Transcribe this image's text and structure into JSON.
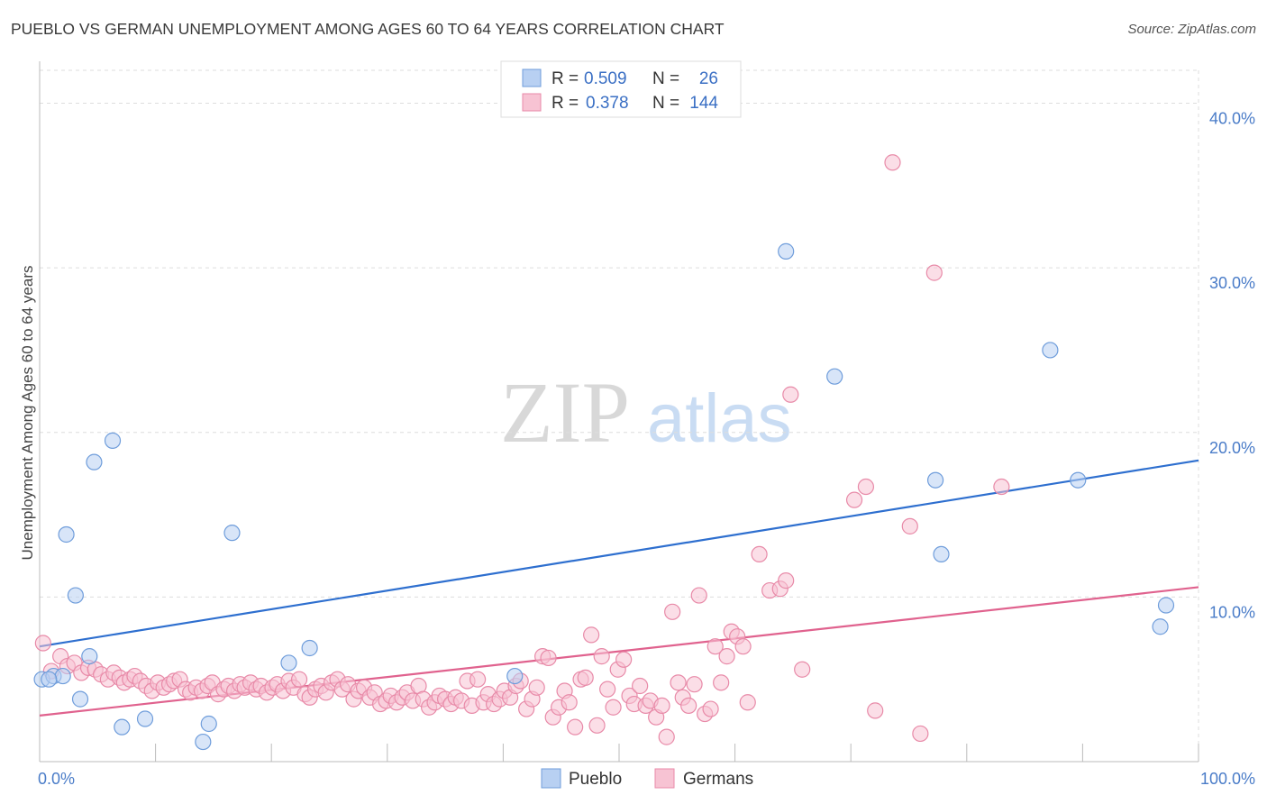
{
  "title": "PUEBLO VS GERMAN UNEMPLOYMENT AMONG AGES 60 TO 64 YEARS CORRELATION CHART",
  "source": "Source: ZipAtlas.com",
  "watermark": {
    "zip": "ZIP",
    "atlas": "atlas"
  },
  "colors": {
    "pueblo_fill": "#b8d0f2",
    "pueblo_stroke": "#6f9ddb",
    "pueblo_line": "#2e6fcf",
    "german_fill": "#f7c3d3",
    "german_stroke": "#e88aa8",
    "german_line": "#e0628e",
    "tick_text": "#4a7cc8",
    "grid": "#dddddd"
  },
  "legend": {
    "rows": [
      {
        "r_label": "R =",
        "r_value": "0.509",
        "n_label": "N =",
        "n_value": "26"
      },
      {
        "r_label": "R =",
        "r_value": "0.378",
        "n_label": "N =",
        "n_value": "144"
      }
    ]
  },
  "bottom_legend": [
    "Pueblo",
    "Germans"
  ],
  "chart_data": {
    "type": "scatter",
    "xlabel": "",
    "ylabel": "Unemployment Among Ages 60 to 64 years",
    "xlim": [
      0,
      100
    ],
    "ylim": [
      0,
      42
    ],
    "x_tick_labels": [
      "0.0%",
      "100.0%"
    ],
    "y_ticks": [
      10,
      20,
      30,
      40
    ],
    "y_tick_labels": [
      "10.0%",
      "20.0%",
      "30.0%",
      "40.0%"
    ],
    "grid": true,
    "legend_position": "top-center",
    "series": [
      {
        "name": "Pueblo",
        "r": 0.509,
        "n": 26,
        "trend": {
          "x": [
            0,
            100
          ],
          "y": [
            7.0,
            18.3
          ]
        },
        "points": [
          [
            0.2,
            5.0
          ],
          [
            1.2,
            5.2
          ],
          [
            2.0,
            5.2
          ],
          [
            2.3,
            13.8
          ],
          [
            3.1,
            10.1
          ],
          [
            3.5,
            3.8
          ],
          [
            4.3,
            6.4
          ],
          [
            4.7,
            18.2
          ],
          [
            6.3,
            19.5
          ],
          [
            7.1,
            2.1
          ],
          [
            9.1,
            2.6
          ],
          [
            14.1,
            1.2
          ],
          [
            14.6,
            2.3
          ],
          [
            16.6,
            13.9
          ],
          [
            21.5,
            6.0
          ],
          [
            23.3,
            6.9
          ],
          [
            41.0,
            5.2
          ],
          [
            64.4,
            31.0
          ],
          [
            68.6,
            23.4
          ],
          [
            77.3,
            17.1
          ],
          [
            77.8,
            12.6
          ],
          [
            87.2,
            25.0
          ],
          [
            89.6,
            17.1
          ],
          [
            96.7,
            8.2
          ],
          [
            97.2,
            9.5
          ],
          [
            0.8,
            5.0
          ]
        ]
      },
      {
        "name": "Germans",
        "r": 0.378,
        "n": 144,
        "trend": {
          "x": [
            0,
            100
          ],
          "y": [
            2.8,
            10.6
          ]
        },
        "points": [
          [
            0.3,
            7.2
          ],
          [
            1.0,
            5.5
          ],
          [
            1.8,
            6.4
          ],
          [
            2.4,
            5.8
          ],
          [
            3.0,
            6.0
          ],
          [
            3.6,
            5.4
          ],
          [
            4.2,
            5.7
          ],
          [
            4.8,
            5.6
          ],
          [
            5.3,
            5.3
          ],
          [
            5.9,
            5.0
          ],
          [
            6.4,
            5.4
          ],
          [
            6.9,
            5.1
          ],
          [
            7.3,
            4.8
          ],
          [
            7.8,
            5.0
          ],
          [
            8.2,
            5.2
          ],
          [
            8.7,
            4.9
          ],
          [
            9.2,
            4.6
          ],
          [
            9.7,
            4.3
          ],
          [
            10.2,
            4.8
          ],
          [
            10.7,
            4.5
          ],
          [
            11.2,
            4.7
          ],
          [
            11.6,
            4.9
          ],
          [
            12.1,
            5.0
          ],
          [
            12.6,
            4.4
          ],
          [
            13.0,
            4.2
          ],
          [
            13.5,
            4.5
          ],
          [
            14.0,
            4.3
          ],
          [
            14.5,
            4.6
          ],
          [
            14.9,
            4.8
          ],
          [
            15.4,
            4.1
          ],
          [
            15.9,
            4.4
          ],
          [
            16.3,
            4.6
          ],
          [
            16.8,
            4.3
          ],
          [
            17.3,
            4.7
          ],
          [
            17.7,
            4.5
          ],
          [
            18.2,
            4.8
          ],
          [
            18.7,
            4.4
          ],
          [
            19.1,
            4.6
          ],
          [
            19.6,
            4.2
          ],
          [
            20.1,
            4.5
          ],
          [
            20.5,
            4.7
          ],
          [
            21.0,
            4.3
          ],
          [
            21.5,
            4.9
          ],
          [
            21.9,
            4.5
          ],
          [
            22.4,
            5.0
          ],
          [
            22.9,
            4.1
          ],
          [
            23.3,
            3.9
          ],
          [
            23.8,
            4.4
          ],
          [
            24.3,
            4.6
          ],
          [
            24.7,
            4.2
          ],
          [
            25.2,
            4.8
          ],
          [
            25.7,
            5.0
          ],
          [
            26.1,
            4.4
          ],
          [
            26.6,
            4.7
          ],
          [
            27.1,
            3.8
          ],
          [
            27.5,
            4.3
          ],
          [
            28.0,
            4.5
          ],
          [
            28.5,
            3.9
          ],
          [
            28.9,
            4.2
          ],
          [
            29.4,
            3.5
          ],
          [
            29.9,
            3.7
          ],
          [
            30.3,
            4.0
          ],
          [
            30.8,
            3.6
          ],
          [
            31.3,
            3.9
          ],
          [
            31.7,
            4.2
          ],
          [
            32.2,
            3.7
          ],
          [
            32.7,
            4.6
          ],
          [
            33.1,
            3.8
          ],
          [
            33.6,
            3.3
          ],
          [
            34.1,
            3.6
          ],
          [
            34.5,
            4.0
          ],
          [
            35.0,
            3.8
          ],
          [
            35.5,
            3.5
          ],
          [
            35.9,
            3.9
          ],
          [
            36.4,
            3.7
          ],
          [
            36.9,
            4.9
          ],
          [
            37.3,
            3.4
          ],
          [
            37.8,
            5.0
          ],
          [
            38.3,
            3.6
          ],
          [
            38.7,
            4.1
          ],
          [
            39.2,
            3.5
          ],
          [
            39.7,
            3.8
          ],
          [
            40.1,
            4.3
          ],
          [
            40.6,
            3.9
          ],
          [
            41.1,
            4.6
          ],
          [
            41.5,
            4.9
          ],
          [
            42.0,
            3.2
          ],
          [
            42.5,
            3.8
          ],
          [
            42.9,
            4.5
          ],
          [
            43.4,
            6.4
          ],
          [
            43.9,
            6.3
          ],
          [
            44.3,
            2.7
          ],
          [
            44.8,
            3.3
          ],
          [
            45.3,
            4.3
          ],
          [
            45.7,
            3.6
          ],
          [
            46.2,
            2.1
          ],
          [
            46.7,
            5.0
          ],
          [
            47.1,
            5.1
          ],
          [
            47.6,
            7.7
          ],
          [
            48.1,
            2.2
          ],
          [
            48.5,
            6.4
          ],
          [
            49.0,
            4.4
          ],
          [
            49.5,
            3.3
          ],
          [
            49.9,
            5.6
          ],
          [
            50.4,
            6.2
          ],
          [
            50.9,
            4.0
          ],
          [
            51.3,
            3.5
          ],
          [
            51.8,
            4.6
          ],
          [
            52.3,
            3.4
          ],
          [
            52.7,
            3.7
          ],
          [
            53.2,
            2.7
          ],
          [
            53.7,
            3.4
          ],
          [
            54.1,
            1.5
          ],
          [
            54.6,
            9.1
          ],
          [
            55.1,
            4.8
          ],
          [
            55.5,
            3.9
          ],
          [
            56.0,
            3.4
          ],
          [
            56.5,
            4.7
          ],
          [
            56.9,
            10.1
          ],
          [
            57.4,
            2.9
          ],
          [
            57.9,
            3.2
          ],
          [
            58.3,
            7.0
          ],
          [
            58.8,
            4.8
          ],
          [
            59.3,
            6.4
          ],
          [
            59.7,
            7.9
          ],
          [
            60.2,
            7.6
          ],
          [
            60.7,
            7.0
          ],
          [
            61.1,
            3.6
          ],
          [
            62.1,
            12.6
          ],
          [
            63.0,
            10.4
          ],
          [
            63.9,
            10.5
          ],
          [
            64.4,
            11.0
          ],
          [
            64.8,
            22.3
          ],
          [
            65.8,
            5.6
          ],
          [
            70.3,
            15.9
          ],
          [
            71.3,
            16.7
          ],
          [
            72.1,
            3.1
          ],
          [
            73.6,
            36.4
          ],
          [
            75.1,
            14.3
          ],
          [
            76.0,
            1.7
          ],
          [
            77.2,
            29.7
          ],
          [
            83.0,
            16.7
          ]
        ]
      }
    ]
  }
}
